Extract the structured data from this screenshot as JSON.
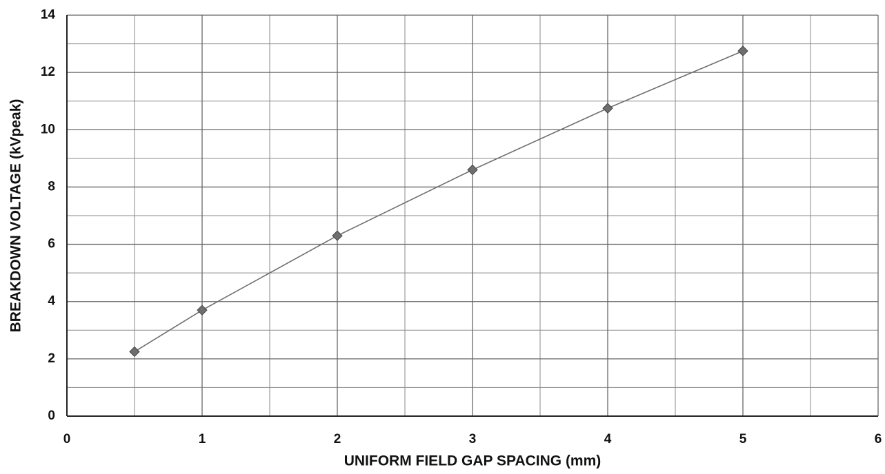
{
  "chart_data": {
    "type": "line",
    "xlabel": "UNIFORM FIELD GAP SPACING (mm)",
    "ylabel": "BREAKDOWN VOLTAGE (kVpeak)",
    "x": [
      0.5,
      1,
      2,
      3,
      4,
      5
    ],
    "series": [
      {
        "color": "#6e6e6e",
        "marker": "diamond",
        "values": [
          2.25,
          3.7,
          6.3,
          8.6,
          10.75,
          12.75
        ]
      }
    ],
    "xlim": [
      0,
      6
    ],
    "xticks": [
      0,
      1,
      2,
      3,
      4,
      5,
      6
    ],
    "ylim": [
      0,
      14
    ],
    "yticks": [
      0,
      2,
      4,
      6,
      8,
      10,
      12,
      14
    ],
    "x_minor_ticks": [
      0.5,
      1.5,
      2.5,
      3.5,
      4.5,
      5.5
    ],
    "y_minor_ticks": [
      1,
      3,
      5,
      7,
      9,
      11,
      13
    ],
    "grid": true
  }
}
